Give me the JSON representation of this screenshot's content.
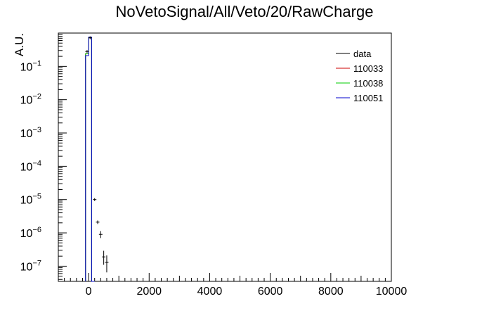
{
  "chart_data": {
    "type": "line",
    "title": "NoVetoSignal/All/Veto/20/RawCharge",
    "xlabel": "",
    "ylabel": "A.U.",
    "xlim": [
      -1000,
      10000
    ],
    "ylim": [
      3.5e-08,
      1.0
    ],
    "yscale": "log",
    "grid": false,
    "legend_position": "top-right",
    "x_ticks": [
      {
        "value": 0,
        "label": "0"
      },
      {
        "value": 2000,
        "label": "2000"
      },
      {
        "value": 4000,
        "label": "4000"
      },
      {
        "value": 6000,
        "label": "6000"
      },
      {
        "value": 8000,
        "label": "8000"
      },
      {
        "value": 10000,
        "label": "10000"
      }
    ],
    "y_ticks": [
      {
        "value": 1e-07,
        "mantissa": "10",
        "exponent": "−7"
      },
      {
        "value": 1e-06,
        "mantissa": "10",
        "exponent": "−6"
      },
      {
        "value": 1e-05,
        "mantissa": "10",
        "exponent": "−5"
      },
      {
        "value": 0.0001,
        "mantissa": "10",
        "exponent": "−4"
      },
      {
        "value": 0.001,
        "mantissa": "10",
        "exponent": "−3"
      },
      {
        "value": 0.01,
        "mantissa": "10",
        "exponent": "−2"
      },
      {
        "value": 0.1,
        "mantissa": "10",
        "exponent": "−1"
      }
    ],
    "bin_edges": [
      -100,
      0,
      100,
      200
    ],
    "series": [
      {
        "name": "data",
        "kind": "points",
        "color": "#000000",
        "points": [
          {
            "x": -50,
            "y": 0.28,
            "yerr_low": 0.0,
            "yerr_high": 0.0
          },
          {
            "x": 50,
            "y": 0.72,
            "yerr_low": 0.0,
            "yerr_high": 0.0
          },
          {
            "x": 200,
            "y": 1e-05,
            "yerr_low": 0.0,
            "yerr_high": 0.0
          },
          {
            "x": 300,
            "y": 2.1e-06,
            "yerr_low": 2.5e-07,
            "yerr_high": 2.5e-07
          },
          {
            "x": 400,
            "y": 9e-07,
            "yerr_low": 2e-07,
            "yerr_high": 2.3e-07
          },
          {
            "x": 500,
            "y": 1.9e-07,
            "yerr_low": 8e-08,
            "yerr_high": 1e-07
          },
          {
            "x": 600,
            "y": 1.3e-07,
            "yerr_low": 6.5e-08,
            "yerr_high": 8e-08
          }
        ]
      },
      {
        "name": "110033",
        "kind": "hist",
        "color": "#cc0000",
        "values": [
          0.24,
          0.74,
          0.0
        ]
      },
      {
        "name": "110038",
        "kind": "hist",
        "color": "#00cc00",
        "values": [
          0.24,
          0.74,
          0.0
        ]
      },
      {
        "name": "110051",
        "kind": "hist",
        "color": "#0000cc",
        "values": [
          0.21,
          0.75,
          0.0
        ]
      }
    ]
  }
}
